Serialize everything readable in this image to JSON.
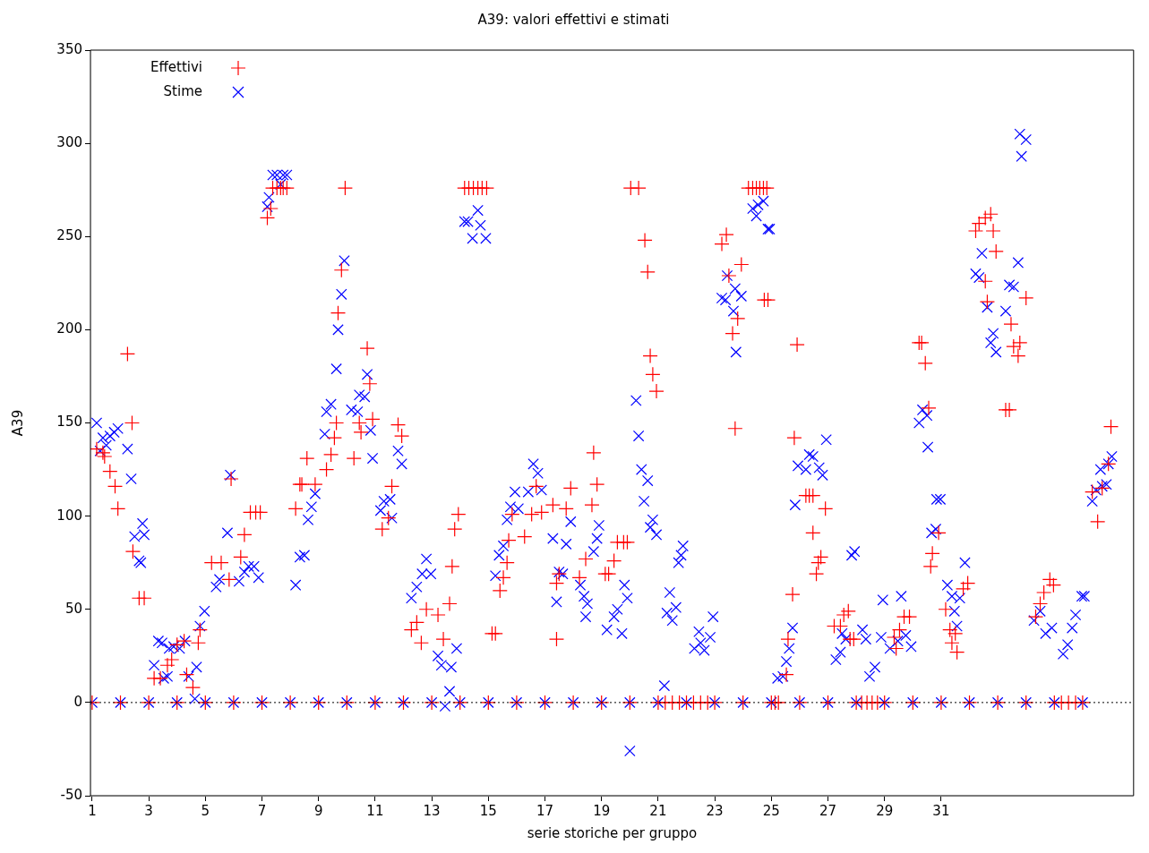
{
  "chart_data": {
    "type": "scatter",
    "title": "A39: valori effettivi e stimati",
    "xlabel": "serie storiche per gruppo",
    "ylabel": "A39",
    "xlim": [
      0.94,
      37.8
    ],
    "xticks": [
      1,
      3,
      5,
      7,
      9,
      11,
      13,
      15,
      17,
      19,
      21,
      23,
      25,
      27,
      29,
      31
    ],
    "ylim": [
      -50,
      350
    ],
    "yticks": [
      -50,
      0,
      50,
      100,
      150,
      200,
      250,
      300,
      350
    ],
    "grid": false,
    "legend": "top left",
    "ref_lines": [
      {
        "axis": "y",
        "value": 0,
        "color": "#000000",
        "line_style": "dotted"
      }
    ],
    "series": [
      {
        "name": "Effettivi",
        "color": "#ff0000",
        "marker": "cross",
        "x": [
          1.16,
          1.38,
          1.44,
          1.63,
          1.81,
          1.91,
          2.25,
          2.41,
          2.44,
          2.66,
          2.84,
          3.19,
          3.41,
          3.66,
          3.81,
          4,
          4.25,
          4.34,
          4.56,
          4.75,
          4.81,
          5.22,
          5.56,
          5.84,
          5.91,
          6.25,
          6.38,
          6.59,
          6.78,
          6.94,
          7.19,
          7.31,
          7.38,
          7.53,
          7.66,
          7.75,
          7.88,
          8.19,
          8.34,
          8.41,
          8.59,
          8.88,
          9.28,
          9.44,
          9.56,
          9.63,
          9.69,
          9.81,
          9.94,
          10.25,
          10.44,
          10.5,
          10.72,
          10.81,
          10.91,
          11.25,
          11.47,
          11.59,
          11.81,
          11.94,
          12.28,
          12.47,
          12.63,
          12.81,
          13.22,
          13.41,
          13.63,
          13.72,
          13.81,
          13.94,
          14.16,
          14.31,
          14.47,
          14.63,
          14.78,
          14.94,
          15.13,
          15.25,
          15.41,
          15.53,
          15.66,
          15.72,
          16.28,
          15.84,
          16.53,
          16.88,
          16.69,
          17.28,
          17.75,
          17.91,
          17.41,
          17.5,
          17.41,
          18.22,
          18.44,
          18.66,
          18.72,
          18.84,
          19.13,
          19.25,
          19.44,
          19.56,
          19.78,
          19.91,
          20.03,
          20.31,
          20.53,
          20.63,
          20.72,
          20.81,
          20.94,
          23.25,
          23.41,
          23.5,
          23.94,
          23.81,
          23.63,
          23.72,
          24.19,
          24.34,
          24.47,
          24.59,
          24.72,
          24.84,
          24.75,
          24.88,
          25.59,
          25.53,
          25.75,
          25.81,
          25.91,
          26.22,
          26.34,
          26.47,
          26.91,
          26.47,
          26.75,
          26.66,
          26.59,
          27.22,
          27.44,
          27.56,
          27.72,
          27.78,
          27.91,
          29.34,
          29.41,
          29.53,
          29.69,
          29.88,
          30.22,
          30.31,
          30.44,
          30.56,
          30.91,
          30.69,
          30.63,
          31.16,
          31.31,
          31.38,
          31.5,
          31.56,
          31.78,
          31.94,
          32.22,
          32.34,
          32.56,
          32.75,
          32.84,
          32.94,
          32.56,
          32.63,
          33.28,
          33.41,
          33.47,
          33.56,
          33.78,
          33.72,
          34,
          34.34,
          34.5,
          34.63,
          34.84,
          34.97,
          36.34,
          36.53,
          36.69,
          36.91,
          37,
          1,
          2,
          3,
          4,
          5,
          6,
          7,
          8,
          9,
          10,
          11,
          12,
          13,
          14,
          15,
          16,
          17,
          18,
          19,
          20,
          21,
          22,
          23,
          24,
          25,
          26,
          27,
          28,
          29,
          30,
          31,
          32,
          33,
          34,
          35,
          36,
          21.25,
          21.5,
          21.75,
          22.25,
          22.5,
          22.75,
          25.13,
          25.25,
          28.19,
          28.38,
          28.56,
          28.75,
          35.25,
          35.5,
          35.75
        ],
        "values": [
          136,
          134,
          132,
          124,
          116,
          104,
          187,
          150,
          81,
          56,
          56,
          13,
          13,
          20,
          23,
          31,
          33,
          15,
          8,
          32,
          39,
          75,
          75,
          66,
          120,
          78,
          90,
          102,
          102,
          102,
          260,
          265,
          276,
          276,
          276,
          276,
          276,
          104,
          117,
          117,
          131,
          117,
          125,
          133,
          142,
          150,
          209,
          232,
          276,
          131,
          150,
          145,
          190,
          171,
          152,
          93,
          99,
          116,
          149,
          143,
          39,
          43,
          32,
          50,
          47,
          34,
          53,
          73,
          93,
          101,
          276,
          276,
          276,
          276,
          276,
          276,
          37,
          37,
          60,
          67,
          75,
          87,
          89,
          101,
          101,
          102,
          116,
          106,
          104,
          115,
          64,
          69,
          34,
          67,
          77,
          106,
          134,
          117,
          69,
          69,
          76,
          86,
          86,
          86,
          276,
          276,
          248,
          231,
          186,
          176,
          167,
          246,
          251,
          229,
          235,
          206,
          198,
          147,
          276,
          276,
          276,
          276,
          276,
          276,
          216,
          216,
          34,
          15,
          58,
          142,
          192,
          111,
          111,
          111,
          104,
          91,
          78,
          75,
          69,
          41,
          41,
          47,
          49,
          34,
          34,
          35,
          29,
          39,
          46,
          46,
          193,
          193,
          182,
          158,
          91,
          80,
          73,
          50,
          39,
          32,
          37,
          27,
          61,
          64,
          253,
          257,
          260,
          262,
          253,
          242,
          226,
          215,
          157,
          157,
          203,
          191,
          193,
          186,
          217,
          46,
          53,
          59,
          66,
          63,
          113,
          97,
          115,
          128,
          148,
          0,
          0,
          0,
          0,
          0,
          0,
          0,
          0,
          0,
          0,
          0,
          0,
          0,
          0,
          0,
          0,
          0,
          0,
          0,
          0,
          0,
          0,
          0,
          0,
          0,
          0,
          0,
          0,
          0,
          0,
          0,
          0,
          0,
          0,
          0,
          0,
          0,
          0,
          0,
          0,
          0,
          0,
          0,
          0,
          0,
          0,
          0,
          0,
          0,
          0,
          0
        ]
      },
      {
        "name": "Stime",
        "color": "#0000ff",
        "marker": "x",
        "x": [
          1.16,
          1.28,
          1.38,
          1.5,
          1.63,
          1.78,
          1.91,
          2.25,
          2.38,
          2.5,
          2.66,
          2.72,
          2.78,
          2.84,
          3.19,
          3.34,
          3.47,
          3.53,
          3.66,
          3.72,
          3.88,
          4.09,
          4.28,
          4.41,
          4.63,
          4.69,
          4.81,
          4.97,
          5.38,
          5.5,
          5.78,
          5.88,
          6.19,
          6.38,
          6.53,
          6.72,
          6.88,
          7.19,
          7.25,
          7.38,
          7.53,
          7.66,
          7.75,
          7.88,
          8.19,
          8.34,
          8.5,
          8.63,
          8.75,
          8.88,
          9.22,
          9.28,
          9.44,
          9.63,
          9.69,
          9.81,
          9.91,
          10.16,
          10.38,
          10.44,
          10.63,
          10.72,
          10.84,
          10.91,
          11.19,
          11.31,
          11.53,
          11.59,
          11.81,
          11.94,
          12.28,
          12.47,
          12.66,
          12.81,
          12.97,
          13.22,
          13.34,
          13.47,
          13.63,
          13.69,
          13.88,
          14.16,
          14.28,
          14.44,
          14.63,
          14.72,
          14.91,
          15.25,
          15.38,
          15.53,
          15.66,
          15.78,
          15.94,
          16.06,
          16.41,
          16.59,
          16.75,
          16.88,
          17.28,
          17.41,
          17.5,
          17.63,
          17.75,
          17.91,
          18.25,
          18.38,
          18.5,
          18.44,
          18.72,
          18.84,
          18.91,
          19.19,
          19.44,
          19.56,
          19.72,
          19.81,
          19.91,
          20,
          20.22,
          20.31,
          20.41,
          20.5,
          20.63,
          20.72,
          20.81,
          20.94,
          21.22,
          21.31,
          21.41,
          21.5,
          21.63,
          21.72,
          21.81,
          21.88,
          22.28,
          22.44,
          22.5,
          22.63,
          22.84,
          22.94,
          23.25,
          23.38,
          23.44,
          23.66,
          23.72,
          23.94,
          23.75,
          24.34,
          24.47,
          24.53,
          24.72,
          24.88,
          24.94,
          25.22,
          25.41,
          25.53,
          25.63,
          25.75,
          25.84,
          25.94,
          26.22,
          26.34,
          26.47,
          26.69,
          26.81,
          26.94,
          27.28,
          27.44,
          27.5,
          27.63,
          27.84,
          27.94,
          28.22,
          28.34,
          28.47,
          28.66,
          28.88,
          28.94,
          29.19,
          29.47,
          29.59,
          29.75,
          29.94,
          30.22,
          30.34,
          30.5,
          30.53,
          30.84,
          30.97,
          30.66,
          30.81,
          31.22,
          31.38,
          31.66,
          31.84,
          31.47,
          31.56,
          32.22,
          32.34,
          32.44,
          32.63,
          32.84,
          32.75,
          32.94,
          33.28,
          33.41,
          33.56,
          33.72,
          33.78,
          34,
          33.84,
          34.28,
          34.5,
          34.69,
          34.91,
          35.31,
          35.47,
          35.63,
          35.75,
          35.97,
          36.06,
          36.34,
          36.47,
          36.69,
          36.84,
          36.63,
          36.91,
          37.03,
          1,
          2,
          3,
          4,
          5,
          6,
          7,
          8,
          9,
          10,
          11,
          12,
          13,
          14,
          15,
          16,
          17,
          18,
          19,
          20,
          21,
          22,
          23,
          24,
          25,
          26,
          27,
          28,
          29,
          30,
          31,
          32,
          33,
          34,
          35,
          36
        ],
        "values": [
          150,
          135,
          142,
          138,
          143,
          145,
          147,
          136,
          120,
          89,
          76,
          75,
          96,
          90,
          20,
          33,
          32,
          13,
          14,
          29,
          30,
          29,
          33,
          14,
          2,
          19,
          41,
          49,
          62,
          66,
          91,
          122,
          65,
          70,
          73,
          73,
          67,
          266,
          271,
          283,
          283,
          278,
          283,
          283,
          63,
          78,
          79,
          98,
          105,
          112,
          144,
          156,
          160,
          179,
          200,
          219,
          237,
          157,
          156,
          165,
          164,
          176,
          146,
          131,
          103,
          108,
          109,
          99,
          135,
          128,
          56,
          62,
          69,
          77,
          69,
          25,
          20,
          -2,
          6,
          19,
          29,
          258,
          258,
          249,
          264,
          256,
          249,
          68,
          79,
          84,
          98,
          105,
          113,
          104,
          113,
          128,
          123,
          114,
          88,
          54,
          70,
          69,
          85,
          97,
          63,
          57,
          53,
          46,
          81,
          88,
          95,
          39,
          46,
          50,
          37,
          63,
          56,
          -26,
          162,
          143,
          125,
          108,
          119,
          94,
          98,
          90,
          9,
          48,
          59,
          44,
          51,
          75,
          79,
          84,
          29,
          38,
          32,
          28,
          35,
          46,
          217,
          216,
          229,
          210,
          222,
          218,
          188,
          265,
          261,
          267,
          269,
          254,
          254,
          13,
          14,
          22,
          29,
          40,
          106,
          127,
          125,
          133,
          132,
          126,
          122,
          141,
          23,
          27,
          37,
          34,
          79,
          81,
          39,
          34,
          14,
          19,
          35,
          55,
          29,
          33,
          57,
          36,
          30,
          150,
          157,
          154,
          137,
          109,
          109,
          91,
          93,
          63,
          57,
          56,
          75,
          49,
          41,
          230,
          228,
          241,
          212,
          198,
          193,
          188,
          210,
          224,
          223,
          236,
          305,
          302,
          293,
          44,
          49,
          37,
          40,
          26,
          31,
          40,
          47,
          57,
          57,
          108,
          114,
          116,
          117,
          125,
          128,
          132,
          0,
          0,
          0,
          0,
          0,
          0,
          0,
          0,
          0,
          0,
          0,
          0,
          0,
          0,
          0,
          0,
          0,
          0,
          0,
          0,
          0,
          0,
          0,
          0,
          0,
          0,
          0,
          0,
          0,
          0,
          0,
          0,
          0,
          0,
          0,
          0
        ]
      }
    ]
  }
}
